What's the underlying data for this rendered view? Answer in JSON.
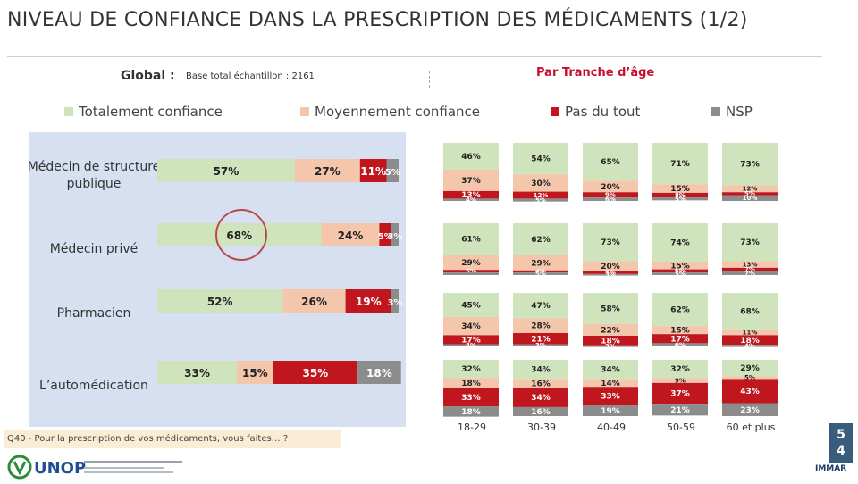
{
  "title": "NIVEAU DE CONFIANCE DANS LA PRESCRIPTION DES MÉDICAMENTS (1/2)",
  "global_label": "Global :",
  "global_subtitle": "Base total échantillon : 2161",
  "age_heading": "Par Tranche d’âge",
  "question": "Q40 - Pour la prescription de vos médicaments, vous faites… ?",
  "page_number": "5\n4",
  "logos": {
    "left": "UNOP",
    "right": "IMMAR"
  },
  "colors": {
    "totalement": "#cfe3bd",
    "moyennement": "#f4c6ac",
    "pas_du_tout": "#c0161e",
    "nsp": "#8c8c8c",
    "global_panel": "#d7e0f1",
    "title": "#333333",
    "accent": "#c8102e"
  },
  "chart_data": [
    {
      "type": "bar",
      "stacked": true,
      "orientation": "horizontal",
      "panel": "Global",
      "legend": [
        "Totalement confiance",
        "Moyennement confiance",
        "Pas du tout",
        "NSP"
      ],
      "legend_position": "top",
      "categories": [
        "Médecin de structure publique",
        "Médecin privé",
        "Pharmacien",
        "L’automédication"
      ],
      "series": [
        {
          "name": "Totalement confiance",
          "values": [
            57,
            68,
            52,
            33
          ]
        },
        {
          "name": "Moyennement confiance",
          "values": [
            27,
            24,
            26,
            15
          ]
        },
        {
          "name": "Pas du tout",
          "values": [
            11,
            5,
            19,
            35
          ]
        },
        {
          "name": "NSP",
          "values": [
            5,
            3,
            3,
            18
          ]
        }
      ],
      "labels": [
        [
          "57%",
          "27%",
          "11%",
          "5%"
        ],
        [
          "68%",
          "24%",
          "5%",
          "3%"
        ],
        [
          "52%",
          "26%",
          "19%",
          "3%"
        ],
        [
          "33%",
          "15%",
          "35%",
          "18%"
        ]
      ],
      "highlight": "68%"
    },
    {
      "type": "bar",
      "stacked": true,
      "orientation": "vertical",
      "panel": "Par Tranche d’âge",
      "age_groups": [
        "18-29",
        "30-39",
        "40-49",
        "50-59",
        "60 et plus"
      ],
      "rows": [
        {
          "category": "Médecin de structure publique",
          "series": [
            {
              "name": "Totalement confiance",
              "values": [
                46,
                54,
                65,
                71,
                73
              ]
            },
            {
              "name": "Moyennement confiance",
              "values": [
                37,
                30,
                20,
                15,
                12
              ]
            },
            {
              "name": "Pas du tout",
              "values": [
                13,
                12,
                9,
                8,
                5
              ]
            },
            {
              "name": "NSP",
              "values": [
                4,
                5,
                6,
                5,
                10
              ]
            }
          ],
          "labels": [
            [
              "46%",
              "37%",
              "13%",
              "4%"
            ],
            [
              "54%",
              "30%",
              "12%",
              "5%"
            ],
            [
              "65%",
              "20%",
              "9%",
              "6%"
            ],
            [
              "71%",
              "15%",
              "8%",
              "5%"
            ],
            [
              "73%",
              "12%",
              "5%",
              "10%"
            ]
          ]
        },
        {
          "category": "Médecin privé",
          "series": [
            {
              "name": "Totalement confiance",
              "values": [
                61,
                62,
                73,
                74,
                73
              ]
            },
            {
              "name": "Moyennement confiance",
              "values": [
                29,
                29,
                20,
                15,
                13
              ]
            },
            {
              "name": "Pas du tout",
              "values": [
                5,
                4,
                5,
                6,
                7
              ]
            },
            {
              "name": "NSP",
              "values": [
                5,
                5,
                3,
                5,
                7
              ]
            }
          ],
          "labels": [
            [
              "61%",
              "29%",
              "5%",
              ""
            ],
            [
              "62%",
              "29%",
              "4%",
              "5%"
            ],
            [
              "73%",
              "20%",
              "5%",
              "3%"
            ],
            [
              "74%",
              "15%",
              "6%",
              "5%"
            ],
            [
              "73%",
              "13%",
              "7%",
              "7%"
            ]
          ]
        },
        {
          "category": "Pharmacien",
          "series": [
            {
              "name": "Totalement confiance",
              "values": [
                45,
                47,
                58,
                62,
                68
              ]
            },
            {
              "name": "Moyennement confiance",
              "values": [
                34,
                28,
                22,
                15,
                11
              ]
            },
            {
              "name": "Pas du tout",
              "values": [
                17,
                21,
                18,
                17,
                18
              ]
            },
            {
              "name": "NSP",
              "values": [
                4,
                3,
                3,
                6,
                4
              ]
            }
          ],
          "labels": [
            [
              "45%",
              "34%",
              "17%",
              "4%"
            ],
            [
              "47%",
              "28%",
              "21%",
              "3%"
            ],
            [
              "58%",
              "22%",
              "18%",
              "3%"
            ],
            [
              "62%",
              "15%",
              "17%",
              "6%"
            ],
            [
              "68%",
              "11%",
              "18%",
              "4%"
            ]
          ]
        },
        {
          "category": "L’automédication",
          "series": [
            {
              "name": "Totalement confiance",
              "values": [
                32,
                34,
                34,
                32,
                29
              ]
            },
            {
              "name": "Moyennement confiance",
              "values": [
                18,
                16,
                14,
                9,
                5
              ]
            },
            {
              "name": "Pas du tout",
              "values": [
                33,
                34,
                33,
                37,
                43
              ]
            },
            {
              "name": "NSP",
              "values": [
                18,
                16,
                19,
                21,
                23
              ]
            }
          ],
          "labels": [
            [
              "32%",
              "18%",
              "33%",
              "18%"
            ],
            [
              "34%",
              "16%",
              "34%",
              "16%"
            ],
            [
              "34%",
              "14%",
              "33%",
              "19%"
            ],
            [
              "32%",
              "9%",
              "37%",
              "21%"
            ],
            [
              "29%",
              "5%",
              "43%",
              "23%"
            ]
          ]
        }
      ]
    }
  ]
}
